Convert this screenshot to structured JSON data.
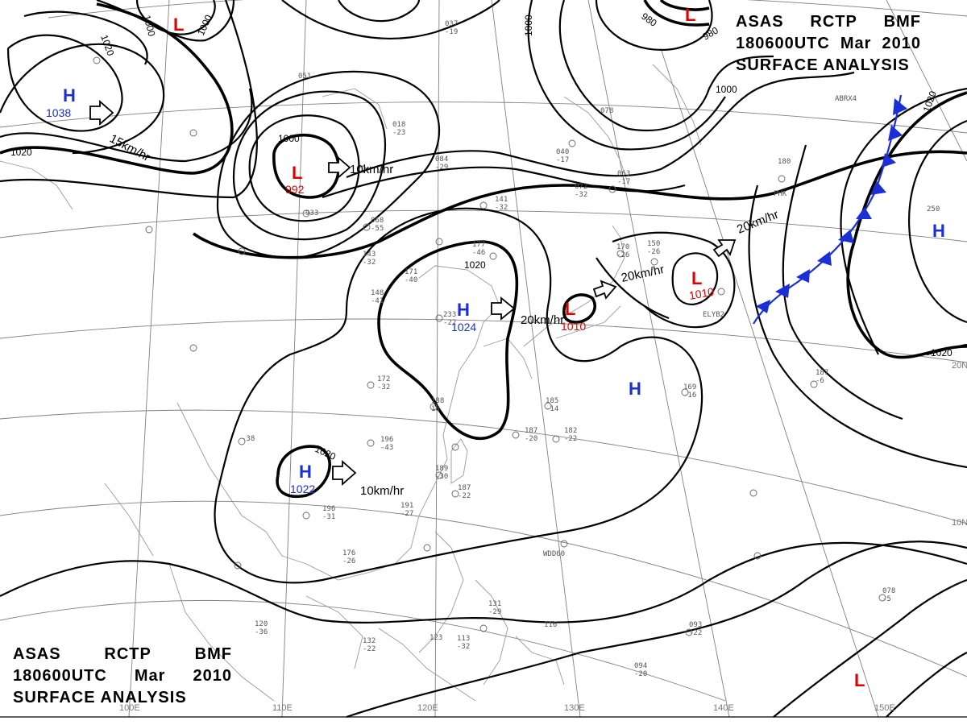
{
  "titles": {
    "agency": "ASAS",
    "center": "RCTP",
    "unit": "BMF",
    "time": "180600UTC",
    "month": "Mar",
    "year": "2010",
    "product": "SURFACE ANALYSIS"
  },
  "lat_labels": [
    "20N",
    "10N"
  ],
  "lon_labels": [
    "110E",
    "120E",
    "130E",
    "140E",
    "150E",
    "100E"
  ],
  "isobar_labels": [
    "1020",
    "1000",
    "1000",
    "1020",
    "1000",
    "1000",
    "980",
    "980",
    "1000",
    "1020",
    "1020",
    "1020",
    "1020"
  ],
  "pressure_systems": [
    {
      "type": "H",
      "value": "1038"
    },
    {
      "type": "L",
      "value": ""
    },
    {
      "type": "L",
      "value": "992"
    },
    {
      "type": "L",
      "value": ""
    },
    {
      "type": "H",
      "value": "1024"
    },
    {
      "type": "L",
      "value": "1010"
    },
    {
      "type": "L",
      "value": "1010"
    },
    {
      "type": "H",
      "value": ""
    },
    {
      "type": "H",
      "value": "1022"
    },
    {
      "type": "H",
      "value": ""
    },
    {
      "type": "L",
      "value": ""
    }
  ],
  "movement_labels": [
    "15km/hr",
    "10km/hr",
    "20km/hr",
    "20km/hr",
    "20km/hr",
    "10km/hr"
  ],
  "station_snippets": [
    "037",
    "-19",
    "051",
    "018",
    "-23",
    "084",
    "-29",
    "141",
    "-32",
    "177",
    "-46",
    "171",
    "-40",
    "233",
    "-22",
    "148",
    "-41",
    "172",
    "-32",
    "188",
    "18",
    "196",
    "-43",
    "185",
    "-14",
    "187",
    "-20",
    "182",
    "-22",
    "189",
    "-30",
    "187",
    "-22",
    "191",
    "-27",
    "196",
    "-31",
    "176",
    "-26",
    "132",
    "-22",
    "123",
    "113",
    "-32",
    "131",
    "-29",
    "116",
    "094",
    "-20",
    "093",
    "-22",
    "078",
    "-5",
    "187",
    "-6",
    "169",
    "-16",
    "150",
    "-26",
    "170",
    "-26",
    "180",
    "250",
    "063",
    "-17",
    "040",
    "-17",
    "072",
    "-32",
    "078",
    "933",
    "068",
    "-55",
    "143",
    "-32",
    "-38",
    "120",
    "-36",
    "WDD60",
    "ELYB2",
    "ABRX4",
    "PHK"
  ]
}
